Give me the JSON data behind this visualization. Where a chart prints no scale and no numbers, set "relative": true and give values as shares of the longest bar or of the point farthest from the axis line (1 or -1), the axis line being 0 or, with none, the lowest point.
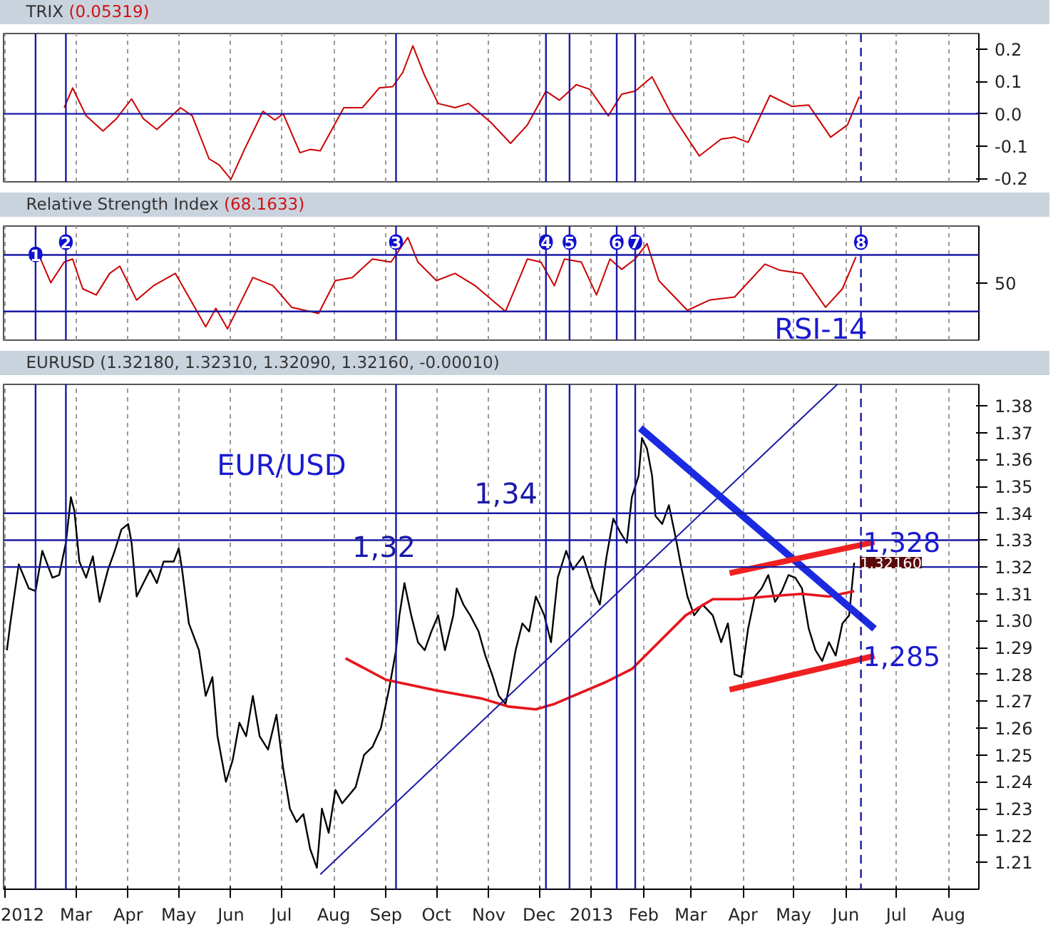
{
  "chart_data": [
    {
      "type": "line",
      "title": "TRIX",
      "subtitle": "(0.05319)",
      "grid": "x",
      "tick_labels": "y",
      "xlim": [
        "2012-01-18",
        "2013-08-19"
      ],
      "ylim": [
        -0.21,
        0.248
      ],
      "yticks": [
        -0.2,
        -0.1,
        {
          "value": 0,
          "label": "0.0"
        },
        0.1,
        0.2
      ],
      "ref_lines": [
        {
          "axis": "y",
          "value": 0,
          "color": "#1a1aa6"
        },
        {
          "axis": "x",
          "value": "2012-02-06",
          "color": "#1a1aa6"
        },
        {
          "axis": "x",
          "value": "2012-02-24",
          "color": "#1a1aa6"
        },
        {
          "axis": "x",
          "value": "2012-09-07",
          "color": "#1a1aa6"
        },
        {
          "axis": "x",
          "value": "2012-12-05",
          "color": "#1a1aa6"
        },
        {
          "axis": "x",
          "value": "2012-12-19",
          "color": "#1a1aa6"
        },
        {
          "axis": "x",
          "value": "2013-01-16",
          "color": "#1a1aa6"
        },
        {
          "axis": "x",
          "value": "2013-01-27",
          "color": "#1a1aa6"
        },
        {
          "axis": "x",
          "value": "2013-06-10",
          "color": "#1a1aa6",
          "line_style": "dashed"
        }
      ],
      "series": [
        {
          "color": "#cc0000",
          "x": [
            "2012-02-23",
            "2012-02-28",
            "2012-03-07",
            "2012-03-17",
            "2012-03-25",
            "2012-04-03",
            "2012-04-10",
            "2012-04-18",
            "2012-04-25",
            "2012-05-02",
            "2012-05-09",
            "2012-05-19",
            "2012-05-25",
            "2012-06-01",
            "2012-06-09",
            "2012-06-20",
            "2012-06-27",
            "2012-07-02",
            "2012-07-12",
            "2012-07-18",
            "2012-07-24",
            "2012-08-07",
            "2012-08-18",
            "2012-08-28",
            "2012-09-05",
            "2012-09-11",
            "2012-09-17",
            "2012-09-24",
            "2012-10-02",
            "2012-10-12",
            "2012-10-20",
            "2012-11-02",
            "2012-11-14",
            "2012-11-24",
            "2012-12-05",
            "2012-12-13",
            "2012-12-23",
            "2012-12-31",
            "2013-01-11",
            "2013-01-19",
            "2013-01-27",
            "2013-02-06",
            "2013-02-17",
            "2013-03-06",
            "2013-03-19",
            "2013-03-27",
            "2013-04-04",
            "2013-04-17",
            "2013-04-30",
            "2013-05-10",
            "2013-05-23",
            "2013-06-02",
            "2013-06-09"
          ],
          "values": [
            0.019,
            0.08,
            -0.006,
            -0.053,
            -0.015,
            0.046,
            -0.015,
            -0.048,
            -0.015,
            0.019,
            -0.006,
            -0.139,
            -0.158,
            -0.202,
            -0.11,
            0.008,
            -0.019,
            0.0,
            -0.12,
            -0.11,
            -0.114,
            0.019,
            0.019,
            0.08,
            0.084,
            0.128,
            0.21,
            0.118,
            0.032,
            0.019,
            0.032,
            -0.025,
            -0.091,
            -0.034,
            0.07,
            0.042,
            0.09,
            0.076,
            -0.006,
            0.061,
            0.07,
            0.114,
            0.004,
            -0.13,
            -0.078,
            -0.072,
            -0.088,
            0.057,
            0.023,
            0.027,
            -0.072,
            -0.034,
            0.053
          ]
        }
      ]
    },
    {
      "type": "line",
      "title": "Relative Strength Index",
      "subtitle": "(68.1633)",
      "grid": "x",
      "tick_labels": "y",
      "relative": true,
      "xlim": [
        "2012-01-18",
        "2013-08-19"
      ],
      "ref_lines": [
        {
          "axis": "y",
          "value": 0.83,
          "color": "#1a1aa6"
        },
        {
          "axis": "y",
          "value": 0.28,
          "color": "#1a1aa6"
        },
        {
          "axis": "x",
          "value": "2012-02-06",
          "color": "#1a1aa6"
        },
        {
          "axis": "x",
          "value": "2012-02-24",
          "color": "#1a1aa6"
        },
        {
          "axis": "x",
          "value": "2012-09-07",
          "color": "#1a1aa6"
        },
        {
          "axis": "x",
          "value": "2012-12-05",
          "color": "#1a1aa6"
        },
        {
          "axis": "x",
          "value": "2012-12-19",
          "color": "#1a1aa6"
        },
        {
          "axis": "x",
          "value": "2013-01-16",
          "color": "#1a1aa6"
        },
        {
          "axis": "x",
          "value": "2013-01-27",
          "color": "#1a1aa6"
        },
        {
          "axis": "x",
          "value": "2013-06-10",
          "color": "#1a1aa6",
          "line_style": "dashed"
        }
      ],
      "annotations": [
        "50",
        "RSI-14",
        {
          "text": "1",
          "x": "2012-02-06",
          "y": 0.71
        },
        {
          "text": "2",
          "x": "2012-02-24",
          "y": 0.83
        },
        {
          "text": "3",
          "x": "2012-09-07",
          "y": 0.83
        },
        {
          "text": "4",
          "x": "2012-12-05",
          "y": 0.83
        },
        {
          "text": "5",
          "x": "2012-12-19",
          "y": 0.83
        },
        {
          "text": "6",
          "x": "2013-01-16",
          "y": 0.83
        },
        {
          "text": "7",
          "x": "2013-01-27",
          "y": 0.83
        },
        {
          "text": "8",
          "x": "2013-06-10",
          "y": 0.83
        }
      ],
      "series": [
        {
          "color": "#cc0000",
          "x": [
            "2012-02-09",
            "2012-02-15",
            "2012-02-23",
            "2012-02-28",
            "2012-03-05",
            "2012-03-13",
            "2012-03-21",
            "2012-03-27",
            "2012-04-06",
            "2012-04-16",
            "2012-04-29",
            "2012-05-07",
            "2012-05-17",
            "2012-05-23",
            "2012-05-30",
            "2012-06-14",
            "2012-06-26",
            "2012-07-07",
            "2012-07-23",
            "2012-08-02",
            "2012-08-12",
            "2012-08-24",
            "2012-09-04",
            "2012-09-14",
            "2012-09-20",
            "2012-10-01",
            "2012-10-12",
            "2012-10-24",
            "2012-11-11",
            "2012-11-24",
            "2012-12-02",
            "2012-12-10",
            "2012-12-16",
            "2012-12-26",
            "2013-01-04",
            "2013-01-12",
            "2013-01-19",
            "2013-01-27",
            "2013-02-03",
            "2013-02-10",
            "2013-02-27",
            "2013-03-12",
            "2013-03-27",
            "2013-04-14",
            "2013-04-23",
            "2013-05-06",
            "2013-05-20",
            "2013-05-30",
            "2013-06-07"
          ],
          "values": [
            0.79,
            0.56,
            0.76,
            0.79,
            0.5,
            0.44,
            0.65,
            0.72,
            0.39,
            0.53,
            0.65,
            0.42,
            0.13,
            0.31,
            0.11,
            0.61,
            0.53,
            0.32,
            0.26,
            0.58,
            0.61,
            0.79,
            0.76,
            1.0,
            0.76,
            0.58,
            0.65,
            0.53,
            0.28,
            0.79,
            0.76,
            0.53,
            0.79,
            0.76,
            0.44,
            0.79,
            0.69,
            0.79,
            0.94,
            0.58,
            0.29,
            0.39,
            0.42,
            0.74,
            0.68,
            0.65,
            0.32,
            0.5,
            0.81
          ]
        }
      ]
    },
    {
      "type": "line",
      "title": "EURUSD (1.32180, 1.32310, 1.32090, 1.32160, -0.00010)",
      "grid": "x",
      "xlim": [
        "2012-01-18",
        "2013-08-19"
      ],
      "ylim": [
        1.2,
        1.388
      ],
      "xticks": [
        {
          "value": "2012-01-19",
          "label": "2012"
        },
        {
          "value": "2012-03-01",
          "label": "Mar"
        },
        {
          "value": "2012-04-01",
          "label": "Apr"
        },
        {
          "value": "2012-05-01",
          "label": "May"
        },
        {
          "value": "2012-06-01",
          "label": "Jun"
        },
        {
          "value": "2012-07-01",
          "label": "Jul"
        },
        {
          "value": "2012-08-01",
          "label": "Aug"
        },
        {
          "value": "2012-09-01",
          "label": "Sep"
        },
        {
          "value": "2012-10-01",
          "label": "Oct"
        },
        {
          "value": "2012-11-01",
          "label": "Nov"
        },
        {
          "value": "2012-12-01",
          "label": "Dec"
        },
        {
          "value": "2013-01-01",
          "label": "2013"
        },
        {
          "value": "2013-02-01",
          "label": "Feb"
        },
        {
          "value": "2013-03-01",
          "label": "Mar"
        },
        {
          "value": "2013-04-01",
          "label": "Apr"
        },
        {
          "value": "2013-05-01",
          "label": "May"
        },
        {
          "value": "2013-06-01",
          "label": "Jun"
        },
        {
          "value": "2013-07-01",
          "label": "Jul"
        },
        {
          "value": "2013-08-01",
          "label": "Aug"
        }
      ],
      "yticks": [
        1.21,
        1.22,
        1.23,
        1.24,
        1.25,
        1.26,
        1.27,
        1.28,
        1.29,
        {
          "value": 1.3,
          "label": "1.30"
        },
        1.31,
        1.32,
        1.33,
        1.34,
        1.35,
        1.36,
        1.37,
        1.38
      ],
      "ref_lines": [
        {
          "axis": "y",
          "value": 1.34,
          "color": "#1a1aa6",
          "label": "1,34"
        },
        {
          "axis": "y",
          "value": 1.33,
          "color": "#1a1aa6"
        },
        {
          "axis": "y",
          "value": 1.32,
          "color": "#1a1aa6",
          "label": "1,32"
        },
        {
          "axis": "x",
          "value": "2012-02-06",
          "color": "#1a1aa6"
        },
        {
          "axis": "x",
          "value": "2012-02-24",
          "color": "#1a1aa6"
        },
        {
          "axis": "x",
          "value": "2012-09-07",
          "color": "#1a1aa6"
        },
        {
          "axis": "x",
          "value": "2012-12-05",
          "color": "#1a1aa6"
        },
        {
          "axis": "x",
          "value": "2012-12-19",
          "color": "#1a1aa6"
        },
        {
          "axis": "x",
          "value": "2013-01-16",
          "color": "#1a1aa6"
        },
        {
          "axis": "x",
          "value": "2013-01-27",
          "color": "#1a1aa6"
        },
        {
          "axis": "x",
          "value": "2013-06-10",
          "color": "#1a1aa6",
          "line_style": "dashed"
        }
      ],
      "annotations": [
        "EUR/USD",
        {
          "text": "1,328",
          "x": "2013-06-18",
          "y": 1.3293
        },
        {
          "text": "1,285",
          "x": "2013-06-18",
          "y": 1.2869
        },
        {
          "text": "1.32160",
          "x": "2013-06-06",
          "y": 1.3216
        }
      ],
      "series": [
        {
          "color": "#000000",
          "x": [
            "2012-01-20",
            "2012-01-22",
            "2012-01-27",
            "2012-02-02",
            "2012-02-06",
            "2012-02-10",
            "2012-02-16",
            "2012-02-20",
            "2012-02-24",
            "2012-02-27",
            "2012-02-29",
            "2012-03-03",
            "2012-03-07",
            "2012-03-11",
            "2012-03-15",
            "2012-03-20",
            "2012-03-24",
            "2012-03-28",
            "2012-04-01",
            "2012-04-03",
            "2012-04-06",
            "2012-04-10",
            "2012-04-14",
            "2012-04-18",
            "2012-04-22",
            "2012-04-28",
            "2012-05-01",
            "2012-05-03",
            "2012-05-07",
            "2012-05-13",
            "2012-05-17",
            "2012-05-21",
            "2012-05-24",
            "2012-05-29",
            "2012-06-02",
            "2012-06-06",
            "2012-06-10",
            "2012-06-14",
            "2012-06-18",
            "2012-06-23",
            "2012-06-28",
            "2012-07-02",
            "2012-07-06",
            "2012-07-10",
            "2012-07-14",
            "2012-07-18",
            "2012-07-22",
            "2012-07-25",
            "2012-07-29",
            "2012-08-02",
            "2012-08-06",
            "2012-08-10",
            "2012-08-14",
            "2012-08-19",
            "2012-08-24",
            "2012-08-29",
            "2012-09-03",
            "2012-09-07",
            "2012-09-09",
            "2012-09-12",
            "2012-09-16",
            "2012-09-20",
            "2012-09-24",
            "2012-09-28",
            "2012-10-02",
            "2012-10-06",
            "2012-10-11",
            "2012-10-13",
            "2012-10-17",
            "2012-10-21",
            "2012-10-26",
            "2012-10-30",
            "2012-11-03",
            "2012-11-07",
            "2012-11-11",
            "2012-11-13",
            "2012-11-17",
            "2012-11-21",
            "2012-11-25",
            "2012-11-29",
            "2012-12-04",
            "2012-12-08",
            "2012-12-12",
            "2012-12-17",
            "2012-12-21",
            "2012-12-27",
            "2013-01-02",
            "2013-01-06",
            "2013-01-10",
            "2013-01-14",
            "2013-01-18",
            "2013-01-22",
            "2013-01-25",
            "2013-01-29",
            "2013-01-31",
            "2013-02-03",
            "2013-02-06",
            "2013-02-08",
            "2013-02-12",
            "2013-02-16",
            "2013-02-20",
            "2013-02-23",
            "2013-02-27",
            "2013-03-03",
            "2013-03-08",
            "2013-03-14",
            "2013-03-19",
            "2013-03-23",
            "2013-03-27",
            "2013-03-31",
            "2013-04-04",
            "2013-04-08",
            "2013-04-12",
            "2013-04-16",
            "2013-04-20",
            "2013-04-24",
            "2013-04-28",
            "2013-05-02",
            "2013-05-06",
            "2013-05-10",
            "2013-05-14",
            "2013-05-18",
            "2013-05-22",
            "2013-05-26",
            "2013-05-30",
            "2013-06-03",
            "2013-06-06"
          ],
          "values": [
            1.289,
            1.299,
            1.321,
            1.312,
            1.311,
            1.326,
            1.316,
            1.317,
            1.329,
            1.346,
            1.341,
            1.322,
            1.316,
            1.324,
            1.307,
            1.319,
            1.326,
            1.334,
            1.336,
            1.329,
            1.309,
            1.314,
            1.319,
            1.314,
            1.322,
            1.322,
            1.327,
            1.319,
            1.299,
            1.289,
            1.272,
            1.279,
            1.257,
            1.24,
            1.248,
            1.262,
            1.257,
            1.272,
            1.257,
            1.252,
            1.265,
            1.245,
            1.23,
            1.225,
            1.228,
            1.215,
            1.208,
            1.23,
            1.221,
            1.237,
            1.232,
            1.235,
            1.238,
            1.25,
            1.253,
            1.26,
            1.275,
            1.289,
            1.302,
            1.314,
            1.302,
            1.292,
            1.289,
            1.296,
            1.302,
            1.289,
            1.302,
            1.312,
            1.306,
            1.302,
            1.296,
            1.287,
            1.28,
            1.272,
            1.269,
            1.275,
            1.289,
            1.299,
            1.296,
            1.309,
            1.302,
            1.292,
            1.316,
            1.326,
            1.319,
            1.324,
            1.312,
            1.306,
            1.324,
            1.338,
            1.333,
            1.329,
            1.346,
            1.354,
            1.368,
            1.364,
            1.354,
            1.339,
            1.336,
            1.343,
            1.331,
            1.321,
            1.309,
            1.302,
            1.306,
            1.302,
            1.292,
            1.299,
            1.28,
            1.279,
            1.297,
            1.309,
            1.312,
            1.317,
            1.307,
            1.311,
            1.317,
            1.316,
            1.312,
            1.297,
            1.289,
            1.285,
            1.292,
            1.287,
            1.299,
            1.302,
            1.3216
          ]
        },
        {
          "color": "#e8141c",
          "x": [
            "2012-08-08",
            "2012-09-01",
            "2012-10-01",
            "2012-10-28",
            "2012-11-13",
            "2012-11-29",
            "2012-12-10",
            "2013-01-09",
            "2013-01-25",
            "2013-02-10",
            "2013-02-26",
            "2013-03-14",
            "2013-03-30",
            "2013-04-15",
            "2013-05-06",
            "2013-05-22",
            "2013-06-06"
          ],
          "values": [
            1.286,
            1.278,
            1.274,
            1.271,
            1.268,
            1.267,
            1.269,
            1.277,
            1.282,
            1.292,
            1.302,
            1.308,
            1.308,
            1.309,
            1.31,
            1.309,
            1.311
          ]
        },
        {
          "color": "#1a1aa6",
          "x": [
            "2012-07-24",
            "2013-05-27"
          ],
          "values": [
            1.2055,
            1.388
          ]
        },
        {
          "color": "#1b2ae0",
          "x": [
            "2013-01-30",
            "2013-06-18"
          ],
          "values": [
            1.3717,
            1.297
          ]
        },
        {
          "color": "#f02020",
          "x": [
            "2013-03-24",
            "2013-06-18"
          ],
          "values": [
            1.3177,
            1.3293
          ]
        },
        {
          "color": "#f02020",
          "x": [
            "2013-03-24",
            "2013-06-18"
          ],
          "values": [
            1.2743,
            1.2869
          ]
        }
      ]
    }
  ]
}
